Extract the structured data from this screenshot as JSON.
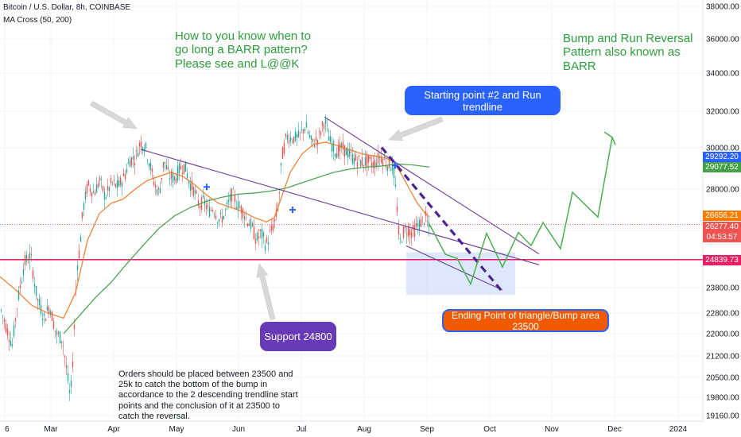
{
  "legend": {
    "symbol_line": "Bitcoin / U.S. Dollar, 8h, COINBASE",
    "indicator_line": "MA Cross (50, 200)"
  },
  "annotations": {
    "question": "How to you know when to go long a BARR pattern? Please see and L@@K",
    "title": "Bump and Run Reversal Pattern also known as BARR",
    "starting_point": "Starting point #2 and Run trendline",
    "support": "Support 24800",
    "ending_point": "Ending Point of triangle/Bump area 23500",
    "orders_note": "Orders should be placed between 23500 and 25k to catch the bottom of the bump in accordance to the 2 descending trendline start points and the conclusion of it at 23500 to catch the reversal."
  },
  "price_badges": {
    "ma_fast": "29292.20",
    "ma_slow": "29077.52",
    "last_high": "26656.21",
    "current": "26277.40",
    "countdown": "04:53:57",
    "support_line": "24839.73"
  },
  "colors": {
    "up_candle": "#26a69a",
    "down_candle": "#ef5350",
    "ma_fast": "#f07a2a",
    "ma_slow": "#43a047",
    "trendline": "#6a3d9a",
    "support_line": "#e91e63",
    "projection": "#4caf50",
    "box": "#c7d7fb",
    "blue_pill": "#2962ff",
    "purple_pill": "#673ab7",
    "orange_pill": "#f05a00"
  },
  "chart_data": {
    "type": "candlestick",
    "y_axis": {
      "ticks": [
        38000,
        36000,
        34000,
        32000,
        30000,
        28000,
        26000,
        24800,
        23800,
        22800,
        22000,
        21200,
        20500,
        19800,
        19160
      ],
      "tick_labels": [
        "38000.00",
        "36000.00",
        "34000.00",
        "32000.00",
        "30000.00",
        "28000.00",
        "",
        "",
        "23800.00",
        "22800.00",
        "22000.00",
        "21200.00",
        "20500.00",
        "19800.00",
        "19160.00"
      ],
      "scale": "logarithmic"
    },
    "x_axis": {
      "tick_labels": [
        "6",
        "Mar",
        "Apr",
        "May",
        "Jun",
        "Jul",
        "Aug",
        "Sep",
        "Oct",
        "Nov",
        "Dec",
        "2024"
      ]
    },
    "price_path": [
      [
        0,
        23000
      ],
      [
        8,
        22200
      ],
      [
        15,
        21600
      ],
      [
        22,
        23300
      ],
      [
        30,
        24700
      ],
      [
        38,
        25000
      ],
      [
        46,
        23400
      ],
      [
        55,
        22600
      ],
      [
        62,
        23100
      ],
      [
        70,
        22000
      ],
      [
        78,
        21800
      ],
      [
        86,
        20200
      ],
      [
        88,
        19700
      ],
      [
        92,
        21500
      ],
      [
        96,
        24500
      ],
      [
        100,
        25300
      ],
      [
        104,
        27000
      ],
      [
        110,
        28200
      ],
      [
        118,
        27800
      ],
      [
        125,
        28400
      ],
      [
        132,
        27600
      ],
      [
        140,
        28300
      ],
      [
        148,
        28100
      ],
      [
        156,
        28600
      ],
      [
        163,
        29400
      ],
      [
        170,
        29500
      ],
      [
        176,
        30300
      ],
      [
        182,
        30100
      ],
      [
        188,
        29200
      ],
      [
        194,
        28200
      ],
      [
        200,
        27800
      ],
      [
        206,
        29400
      ],
      [
        212,
        28600
      ],
      [
        220,
        28500
      ],
      [
        226,
        29000
      ],
      [
        232,
        29100
      ],
      [
        238,
        28300
      ],
      [
        244,
        27900
      ],
      [
        250,
        27200
      ],
      [
        256,
        27400
      ],
      [
        262,
        26900
      ],
      [
        268,
        27100
      ],
      [
        274,
        26500
      ],
      [
        280,
        26600
      ],
      [
        286,
        27200
      ],
      [
        292,
        27800
      ],
      [
        298,
        27200
      ],
      [
        304,
        27000
      ],
      [
        310,
        26500
      ],
      [
        316,
        26200
      ],
      [
        322,
        25600
      ],
      [
        328,
        25900
      ],
      [
        334,
        25400
      ],
      [
        340,
        25900
      ],
      [
        346,
        26500
      ],
      [
        350,
        27300
      ],
      [
        354,
        29500
      ],
      [
        360,
        30600
      ],
      [
        368,
        30500
      ],
      [
        376,
        30600
      ],
      [
        384,
        31200
      ],
      [
        392,
        30200
      ],
      [
        400,
        30500
      ],
      [
        408,
        31500
      ],
      [
        414,
        30400
      ],
      [
        422,
        29800
      ],
      [
        430,
        30000
      ],
      [
        438,
        29700
      ],
      [
        446,
        29400
      ],
      [
        454,
        29300
      ],
      [
        462,
        29300
      ],
      [
        470,
        29200
      ],
      [
        478,
        29600
      ],
      [
        486,
        29200
      ],
      [
        494,
        29100
      ],
      [
        498,
        27600
      ],
      [
        502,
        25400
      ],
      [
        506,
        25900
      ],
      [
        512,
        26100
      ],
      [
        518,
        25900
      ],
      [
        524,
        26200
      ],
      [
        530,
        26400
      ],
      [
        535,
        26600
      ],
      [
        540,
        26000
      ]
    ],
    "ma_fast_path": [
      [
        0,
        24200
      ],
      [
        20,
        23700
      ],
      [
        40,
        23100
      ],
      [
        60,
        22800
      ],
      [
        80,
        22600
      ],
      [
        95,
        23600
      ],
      [
        110,
        25600
      ],
      [
        125,
        26800
      ],
      [
        140,
        27300
      ],
      [
        155,
        27500
      ],
      [
        170,
        28000
      ],
      [
        185,
        28400
      ],
      [
        200,
        28600
      ],
      [
        215,
        28800
      ],
      [
        230,
        28600
      ],
      [
        245,
        28200
      ],
      [
        260,
        27700
      ],
      [
        275,
        27300
      ],
      [
        290,
        27100
      ],
      [
        305,
        26900
      ],
      [
        320,
        26600
      ],
      [
        335,
        26400
      ],
      [
        345,
        26600
      ],
      [
        355,
        27700
      ],
      [
        365,
        28800
      ],
      [
        380,
        29700
      ],
      [
        395,
        30200
      ],
      [
        410,
        30300
      ],
      [
        425,
        30100
      ],
      [
        440,
        29900
      ],
      [
        455,
        29700
      ],
      [
        470,
        29600
      ],
      [
        485,
        29500
      ],
      [
        495,
        29300
      ],
      [
        505,
        28700
      ],
      [
        515,
        28000
      ],
      [
        525,
        27300
      ],
      [
        535,
        26800
      ],
      [
        540,
        26650
      ]
    ],
    "ma_slow_path": [
      [
        80,
        22000
      ],
      [
        100,
        22700
      ],
      [
        120,
        23400
      ],
      [
        140,
        24000
      ],
      [
        160,
        24700
      ],
      [
        180,
        25400
      ],
      [
        200,
        26100
      ],
      [
        220,
        26700
      ],
      [
        240,
        27100
      ],
      [
        260,
        27400
      ],
      [
        280,
        27600
      ],
      [
        300,
        27750
      ],
      [
        320,
        27800
      ],
      [
        340,
        27900
      ],
      [
        360,
        28050
      ],
      [
        380,
        28300
      ],
      [
        400,
        28550
      ],
      [
        420,
        28800
      ],
      [
        440,
        28950
      ],
      [
        460,
        29050
      ],
      [
        480,
        29100
      ],
      [
        500,
        29200
      ],
      [
        520,
        29150
      ],
      [
        540,
        29050
      ]
    ],
    "trendlines": [
      {
        "name": "Trendline 1",
        "points": [
          [
            177,
            29920
          ],
          [
            678,
            24640
          ]
        ]
      },
      {
        "name": "Trendline 2",
        "points": [
          [
            408,
            31680
          ],
          [
            678,
            25060
          ]
        ]
      },
      {
        "name": "Trendline lower",
        "points": [
          [
            511,
            25380
          ],
          [
            632,
            23700
          ]
        ]
      }
    ],
    "crosses": [
      [
        260,
        28100
      ],
      [
        368,
        26980
      ],
      [
        497,
        29130
      ]
    ],
    "dashed_run_line": [
      [
        480,
        30020
      ],
      [
        632,
        23630
      ]
    ],
    "projection": [
      [
        540,
        26300
      ],
      [
        560,
        25050
      ],
      [
        575,
        24880
      ],
      [
        592,
        23930
      ],
      [
        612,
        25880
      ],
      [
        632,
        24560
      ],
      [
        652,
        25920
      ],
      [
        668,
        25390
      ],
      [
        683,
        26370
      ],
      [
        705,
        25260
      ],
      [
        720,
        27840
      ],
      [
        752,
        26630
      ],
      [
        770,
        30560
      ]
    ],
    "projection_arrowhead": [
      [
        760,
        30850
      ],
      [
        770,
        30560
      ],
      [
        774,
        30150
      ]
    ],
    "support_level": 24839.73,
    "bump_box": {
      "x_range": [
        511,
        648
      ],
      "y_range": [
        23510,
        25120
      ]
    }
  }
}
